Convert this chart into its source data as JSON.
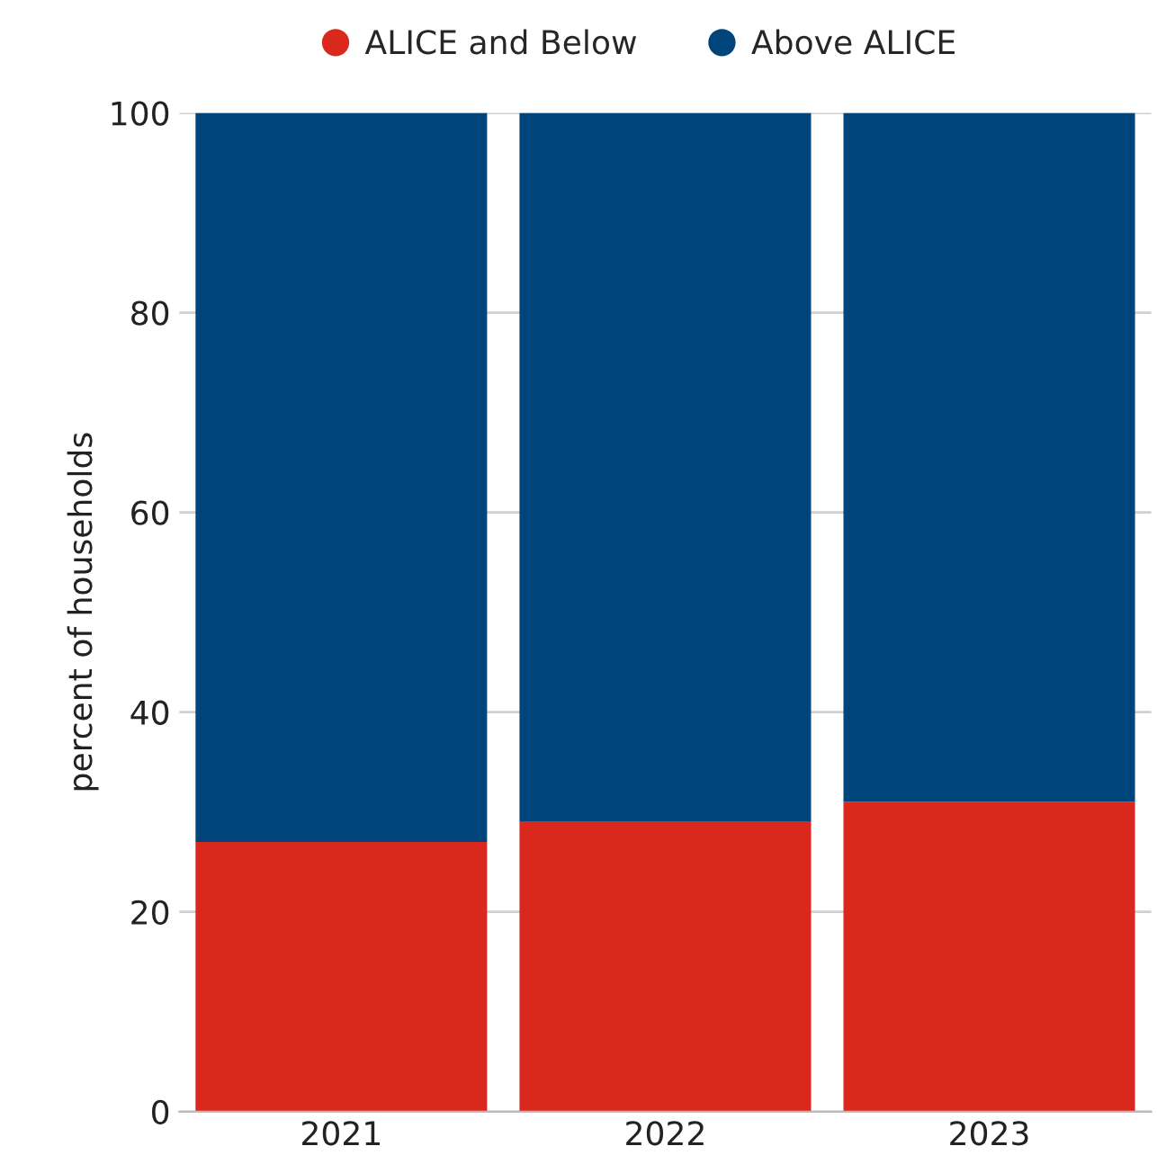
{
  "chart_data": {
    "type": "bar",
    "stacked": true,
    "ylabel": "percent of households",
    "categories": [
      "2021",
      "2022",
      "2023"
    ],
    "series": [
      {
        "name": "ALICE and Below",
        "color": "#da291c",
        "values": [
          27,
          29,
          31
        ]
      },
      {
        "name": "Above ALICE",
        "color": "#00447c",
        "values": [
          73,
          71,
          69
        ]
      }
    ],
    "ylim": [
      0,
      100
    ],
    "yticks": [
      0,
      20,
      40,
      60,
      80,
      100
    ],
    "grid": "y",
    "legend": "top"
  }
}
